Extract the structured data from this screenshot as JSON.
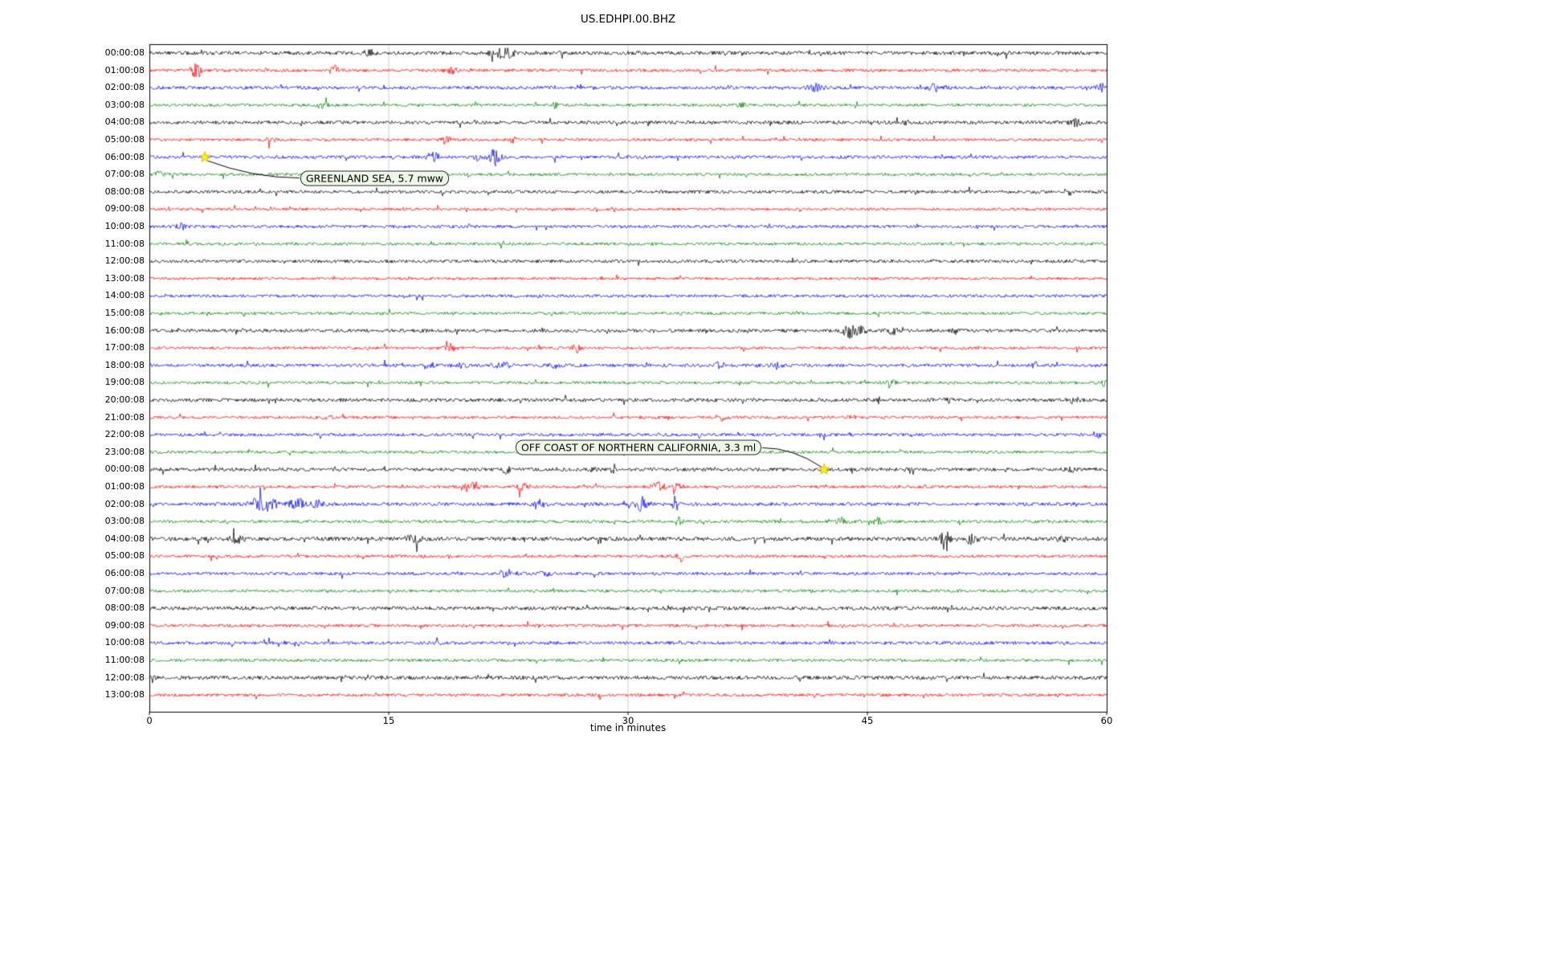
{
  "title": "US.EDHPI.00.BHZ",
  "chart_data": {
    "type": "line",
    "subtype": "seismogram-day-plot",
    "title": "US.EDHPI.00.BHZ",
    "xlabel": "time in minutes",
    "xlim": [
      0,
      60
    ],
    "x_ticks": [
      "0",
      "15",
      "30",
      "45",
      "60"
    ],
    "grid_x": [
      15,
      30,
      45
    ],
    "grid_color": "#c0c0c0",
    "trace_color_cycle": [
      "#000000",
      "#ff0000",
      "#0000ff",
      "#008000"
    ],
    "star_color": "#ffee00",
    "rows": [
      {
        "label": "00:00:08",
        "amp": 2.3,
        "bursts": [
          [
            13.8,
            0.3,
            4
          ],
          [
            21.9,
            0.5,
            6
          ],
          [
            22.6,
            0.3,
            4
          ]
        ]
      },
      {
        "label": "01:00:08",
        "amp": 1.9,
        "bursts": [
          [
            2.8,
            0.2,
            9
          ],
          [
            3.1,
            0.15,
            6
          ],
          [
            11.6,
            0.3,
            5
          ],
          [
            18.9,
            0.4,
            4
          ]
        ]
      },
      {
        "label": "02:00:08",
        "amp": 2.0,
        "bursts": [
          [
            36.5,
            0.2,
            3
          ],
          [
            41.8,
            0.5,
            4
          ],
          [
            49.3,
            0.6,
            4
          ],
          [
            59.7,
            0.3,
            4
          ]
        ]
      },
      {
        "label": "03:00:08",
        "amp": 1.8,
        "bursts": [
          [
            10.8,
            0.4,
            3
          ],
          [
            25.4,
            0.15,
            4
          ],
          [
            37.1,
            0.2,
            3
          ]
        ]
      },
      {
        "label": "04:00:08",
        "amp": 2.2,
        "bursts": [
          [
            47.5,
            0.2,
            3
          ],
          [
            58.0,
            0.4,
            4
          ]
        ]
      },
      {
        "label": "05:00:08",
        "amp": 1.8,
        "bursts": [
          [
            7.6,
            0.3,
            4
          ],
          [
            18.6,
            0.3,
            4
          ],
          [
            22.8,
            0.2,
            3
          ]
        ]
      },
      {
        "label": "06:00:08",
        "amp": 2.0,
        "bursts": [
          [
            17.8,
            0.4,
            5
          ],
          [
            20.6,
            0.3,
            5
          ],
          [
            21.6,
            0.35,
            10
          ]
        ]
      },
      {
        "label": "07:00:08",
        "amp": 1.8,
        "bursts": [
          [
            0.6,
            0.3,
            3
          ]
        ]
      },
      {
        "label": "08:00:08",
        "amp": 2.0,
        "bursts": []
      },
      {
        "label": "09:00:08",
        "amp": 1.7,
        "bursts": []
      },
      {
        "label": "10:00:08",
        "amp": 1.9,
        "bursts": [
          [
            2.0,
            0.3,
            3
          ]
        ]
      },
      {
        "label": "11:00:08",
        "amp": 1.8,
        "bursts": []
      },
      {
        "label": "12:00:08",
        "amp": 2.0,
        "bursts": []
      },
      {
        "label": "13:00:08",
        "amp": 1.7,
        "bursts": []
      },
      {
        "label": "14:00:08",
        "amp": 1.8,
        "bursts": []
      },
      {
        "label": "15:00:08",
        "amp": 1.8,
        "bursts": []
      },
      {
        "label": "16:00:08",
        "amp": 2.1,
        "bursts": [
          [
            43.9,
            0.4,
            9
          ],
          [
            44.6,
            0.3,
            6
          ],
          [
            46.6,
            0.4,
            4
          ],
          [
            50.5,
            0.2,
            3
          ]
        ]
      },
      {
        "label": "17:00:08",
        "amp": 1.8,
        "bursts": [
          [
            18.9,
            0.3,
            5
          ],
          [
            26.8,
            0.25,
            5
          ]
        ]
      },
      {
        "label": "18:00:08",
        "amp": 2.0,
        "bursts": [
          [
            17.5,
            0.4,
            4
          ],
          [
            19.6,
            0.3,
            3
          ],
          [
            22.1,
            0.5,
            4
          ],
          [
            25.4,
            0.3,
            4
          ],
          [
            35.8,
            0.3,
            5
          ],
          [
            39.3,
            0.3,
            4
          ],
          [
            55.6,
            0.25,
            4
          ]
        ]
      },
      {
        "label": "19:00:08",
        "amp": 1.8,
        "bursts": [
          [
            46.5,
            0.3,
            3
          ],
          [
            59.9,
            0.15,
            8
          ]
        ]
      },
      {
        "label": "20:00:08",
        "amp": 2.2,
        "bursts": [
          [
            50.0,
            0.3,
            3
          ],
          [
            57.9,
            0.3,
            4
          ]
        ]
      },
      {
        "label": "21:00:08",
        "amp": 1.8,
        "bursts": [
          [
            11.2,
            0.3,
            3
          ],
          [
            35.8,
            0.25,
            5
          ],
          [
            44.0,
            0.2,
            3
          ]
        ]
      },
      {
        "label": "22:00:08",
        "amp": 1.9,
        "bursts": [
          [
            34.5,
            0.2,
            3
          ],
          [
            59.3,
            0.3,
            4
          ]
        ]
      },
      {
        "label": "23:00:08",
        "amp": 1.8,
        "bursts": []
      },
      {
        "label": "00:00:08",
        "amp": 2.2,
        "bursts": [
          [
            22.4,
            0.3,
            4
          ],
          [
            27.8,
            0.2,
            3
          ],
          [
            57.8,
            0.3,
            4
          ]
        ]
      },
      {
        "label": "01:00:08",
        "amp": 1.9,
        "bursts": [
          [
            19.9,
            0.4,
            5
          ],
          [
            20.5,
            0.3,
            4
          ],
          [
            23.4,
            0.4,
            4
          ],
          [
            31.9,
            0.4,
            5
          ],
          [
            33.1,
            0.3,
            4
          ]
        ]
      },
      {
        "label": "02:00:08",
        "amp": 2.1,
        "bursts": [
          [
            6.8,
            0.5,
            9
          ],
          [
            7.6,
            0.4,
            7
          ],
          [
            9.3,
            0.5,
            6
          ],
          [
            10.5,
            0.4,
            4
          ],
          [
            24.4,
            0.4,
            6
          ],
          [
            30.9,
            0.4,
            9
          ],
          [
            33.0,
            0.2,
            12
          ]
        ]
      },
      {
        "label": "03:00:08",
        "amp": 1.9,
        "bursts": [
          [
            33.2,
            0.2,
            6
          ],
          [
            43.4,
            0.3,
            4
          ],
          [
            45.6,
            0.3,
            4
          ]
        ]
      },
      {
        "label": "04:00:08",
        "amp": 2.5,
        "bursts": [
          [
            5.5,
            0.4,
            4
          ],
          [
            16.5,
            0.5,
            4
          ],
          [
            49.9,
            0.25,
            14
          ],
          [
            51.5,
            0.4,
            5
          ],
          [
            57.2,
            0.3,
            4
          ]
        ]
      },
      {
        "label": "05:00:08",
        "amp": 1.8,
        "bursts": [
          [
            33.3,
            0.2,
            6
          ]
        ]
      },
      {
        "label": "06:00:08",
        "amp": 1.9,
        "bursts": [
          [
            22.4,
            0.5,
            4
          ],
          [
            24.9,
            0.3,
            4
          ]
        ]
      },
      {
        "label": "07:00:08",
        "amp": 1.8,
        "bursts": []
      },
      {
        "label": "08:00:08",
        "amp": 2.3,
        "bursts": []
      },
      {
        "label": "09:00:08",
        "amp": 1.9,
        "bursts": []
      },
      {
        "label": "10:00:08",
        "amp": 2.0,
        "bursts": []
      },
      {
        "label": "11:00:08",
        "amp": 1.9,
        "bursts": []
      },
      {
        "label": "12:00:08",
        "amp": 2.3,
        "bursts": []
      },
      {
        "label": "13:00:08",
        "amp": 1.9,
        "bursts": []
      }
    ],
    "annotations": [
      {
        "text": "GREENLAND SEA, 5.7 mww",
        "star_row": 6,
        "star_x_min": 3.47,
        "label_row": 7.2,
        "label_x_min": 9.46,
        "attach": "left"
      },
      {
        "text": "OFF COAST OF NORTHERN CALIFORNIA, 3.3 ml",
        "star_row": 24,
        "star_x_min": 42.28,
        "label_row": 22.75,
        "label_x_min": 22.95,
        "attach": "right"
      }
    ]
  }
}
